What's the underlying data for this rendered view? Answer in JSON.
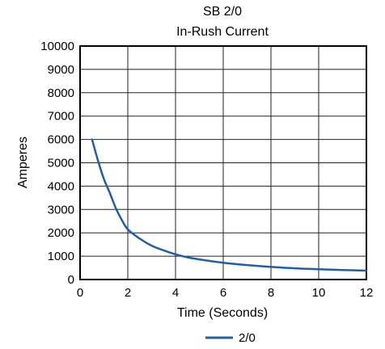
{
  "chart_data": {
    "type": "line",
    "title": "SB 2/0",
    "subtitle": "In-Rush Current",
    "xlabel": "Time (Seconds)",
    "ylabel": "Amperes",
    "xlim": [
      0,
      12
    ],
    "ylim": [
      0,
      10000
    ],
    "xticks": [
      0,
      2,
      4,
      6,
      8,
      10,
      12
    ],
    "yticks": [
      0,
      1000,
      2000,
      3000,
      4000,
      5000,
      6000,
      7000,
      8000,
      9000,
      10000
    ],
    "xtick_labels": [
      "0",
      "2",
      "4",
      "6",
      "8",
      "10",
      "12"
    ],
    "ytick_labels": [
      "0",
      "1000",
      "2000",
      "3000",
      "4000",
      "5000",
      "6000",
      "7000",
      "8000",
      "9000",
      "10000"
    ],
    "grid": true,
    "legend": "bottom-center",
    "series": [
      {
        "name": "2/0",
        "color": "#1f5fa8",
        "x": [
          0.5,
          0.75,
          1.0,
          1.25,
          1.5,
          1.75,
          2.0,
          2.5,
          3.0,
          3.5,
          4.0,
          4.5,
          5.0,
          6.0,
          7.0,
          8.0,
          9.0,
          10.0,
          11.0,
          12.0
        ],
        "y": [
          6000,
          5100,
          4300,
          3700,
          3050,
          2550,
          2150,
          1750,
          1450,
          1250,
          1080,
          950,
          860,
          720,
          620,
          540,
          480,
          440,
          410,
          380
        ]
      }
    ]
  }
}
